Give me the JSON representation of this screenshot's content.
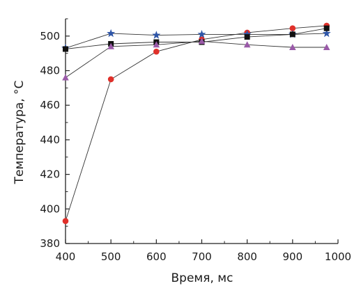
{
  "chart_data": {
    "type": "line",
    "title": "",
    "xlabel": "Время, мс",
    "ylabel": "Температура, °С",
    "xlim": [
      400,
      1000
    ],
    "ylim": [
      380,
      510
    ],
    "xticks": [
      400,
      500,
      600,
      700,
      800,
      900,
      1000
    ],
    "yticks": [
      380,
      400,
      420,
      440,
      460,
      480,
      500
    ],
    "grid": false,
    "legend": "none",
    "series": [
      {
        "marker": "circle",
        "color": "#e0302a",
        "x": [
          400,
          500,
          600,
          700,
          800,
          900,
          975
        ],
        "y": [
          393,
          475,
          491,
          498,
          502,
          504.5,
          506
        ]
      },
      {
        "marker": "star",
        "color": "#2f56a8",
        "x": [
          400,
          500,
          600,
          700,
          800,
          900,
          975
        ],
        "y": [
          493,
          501.5,
          500.5,
          501,
          501,
          501,
          501.5
        ]
      },
      {
        "marker": "square",
        "color": "#111111",
        "x": [
          400,
          500,
          600,
          700,
          800,
          900,
          975
        ],
        "y": [
          492.5,
          495.5,
          496.5,
          496.5,
          499.5,
          501,
          504.5
        ]
      },
      {
        "marker": "triangle",
        "color": "#9a5aa8",
        "x": [
          400,
          500,
          600,
          700,
          800,
          900,
          975
        ],
        "y": [
          476,
          494,
          495,
          497,
          495,
          493.5,
          493.5
        ]
      }
    ]
  }
}
